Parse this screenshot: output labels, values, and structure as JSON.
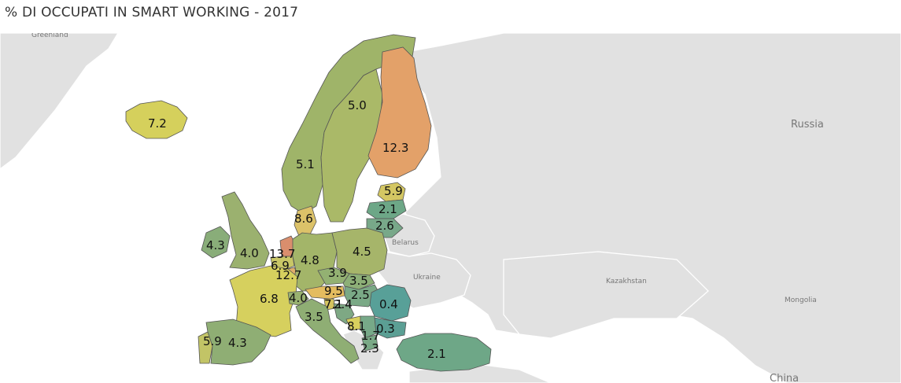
{
  "title": "% DI OCCUPATI IN SMART WORKING - 2017",
  "colors": {
    "background_sea": "#ffffff",
    "land": "#e1e1e1",
    "scale_low": "#5fa58c",
    "scale_mid": "#d4cf5a",
    "scale_high": "#d9826a"
  },
  "geo_labels": {
    "greenland": "Greenland",
    "russia": "Russia",
    "belarus": "Belarus",
    "ukraine": "Ukraine",
    "kazakhstan": "Kazakhstan",
    "mongolia": "Mongolia",
    "china": "China"
  },
  "chart_data": {
    "type": "choropleth",
    "title": "% DI OCCUPATI IN SMART WORKING - 2017",
    "values": [
      {
        "id": "iceland",
        "value": "7.2"
      },
      {
        "id": "norway",
        "value": "5.1"
      },
      {
        "id": "sweden",
        "value": "5.0"
      },
      {
        "id": "finland",
        "value": "12.3"
      },
      {
        "id": "estonia",
        "value": "5.9"
      },
      {
        "id": "latvia",
        "value": "2.1"
      },
      {
        "id": "lithuania",
        "value": "2.6"
      },
      {
        "id": "denmark",
        "value": "8.6"
      },
      {
        "id": "ireland",
        "value": "4.3"
      },
      {
        "id": "uk",
        "value": "4.0"
      },
      {
        "id": "netherlands",
        "value": "13.7"
      },
      {
        "id": "belgium",
        "value": "6.9"
      },
      {
        "id": "luxembourg",
        "value": "12.7"
      },
      {
        "id": "germany",
        "value": "4.8"
      },
      {
        "id": "poland",
        "value": "4.5"
      },
      {
        "id": "czechia",
        "value": "3.9"
      },
      {
        "id": "slovakia",
        "value": "3.5"
      },
      {
        "id": "austria",
        "value": "9.5"
      },
      {
        "id": "hungary",
        "value": "2.5"
      },
      {
        "id": "slovenia",
        "value": "7.1"
      },
      {
        "id": "croatia",
        "value": "2.4"
      },
      {
        "id": "romania",
        "value": "0.4"
      },
      {
        "id": "france",
        "value": "6.8"
      },
      {
        "id": "switzerland",
        "value": "4.0"
      },
      {
        "id": "italy",
        "value": "3.5"
      },
      {
        "id": "bosnia",
        "value": "8.1"
      },
      {
        "id": "serbia",
        "value": "1.7"
      },
      {
        "id": "bulgaria",
        "value": "0.3"
      },
      {
        "id": "macedonia",
        "value": "2.3"
      },
      {
        "id": "portugal",
        "value": "5.9"
      },
      {
        "id": "spain",
        "value": "4.3"
      },
      {
        "id": "turkey",
        "value": "2.1"
      }
    ]
  }
}
